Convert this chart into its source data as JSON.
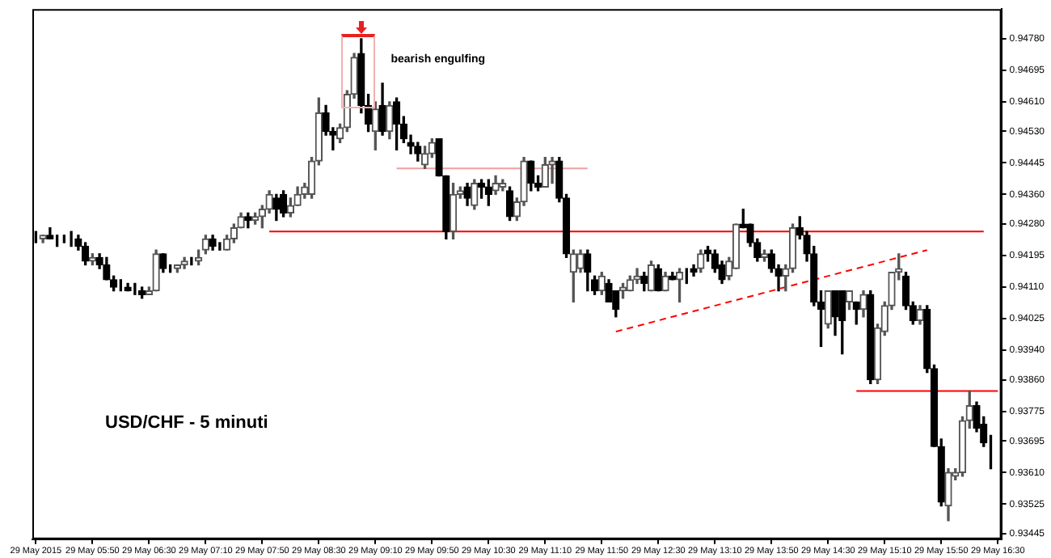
{
  "chart_data": {
    "type": "candlestick",
    "title": "USD/CHF - 5 minuti",
    "annotations": [
      "bearish engulfing"
    ],
    "categories": [
      "29 May 2015",
      null,
      null,
      null,
      null,
      null,
      null,
      null,
      "29 May 05:50",
      null,
      null,
      null,
      null,
      null,
      null,
      null,
      "29 May 06:30",
      null,
      null,
      null,
      null,
      null,
      null,
      null,
      "29 May 07:10",
      null,
      null,
      null,
      null,
      null,
      null,
      null,
      "29 May 07:50",
      null,
      null,
      null,
      null,
      null,
      null,
      null,
      "29 May 08:30",
      null,
      null,
      null,
      null,
      null,
      null,
      null,
      "29 May 09:10",
      null,
      null,
      null,
      null,
      null,
      null,
      null,
      "29 May 09:50",
      null,
      null,
      null,
      null,
      null,
      null,
      null,
      "29 May 10:30",
      null,
      null,
      null,
      null,
      null,
      null,
      null,
      "29 May 11:10",
      null,
      null,
      null,
      null,
      null,
      null,
      null,
      "29 May 11:50",
      null,
      null,
      null,
      null,
      null,
      null,
      null,
      "29 May 12:30",
      null,
      null,
      null,
      null,
      null,
      null,
      null,
      "29 May 13:10",
      null,
      null,
      null,
      null,
      null,
      null,
      null,
      "29 May 13:50",
      null,
      null,
      null,
      null,
      null,
      null,
      null,
      "29 May 14:30",
      null,
      null,
      null,
      null,
      null,
      null,
      null,
      "29 May 15:10",
      null,
      null,
      null,
      null,
      null,
      null,
      null,
      "29 May 15:50",
      null,
      null,
      null,
      null,
      null,
      null,
      null,
      "29 May 16:30"
    ],
    "ohlc": [
      [
        0.9424,
        0.9426,
        0.9423,
        0.9424
      ],
      [
        0.9424,
        0.9425,
        0.9423,
        0.9425
      ],
      [
        0.9425,
        0.9427,
        0.9424,
        0.9424
      ],
      [
        0.9424,
        0.9425,
        0.9422,
        0.9424
      ],
      [
        0.9424,
        0.9425,
        0.9423,
        0.9424
      ],
      [
        0.9424,
        0.9426,
        0.9422,
        0.9424
      ],
      [
        0.9424,
        0.9425,
        0.9421,
        0.9422
      ],
      [
        0.9422,
        0.9423,
        0.9417,
        0.9418
      ],
      [
        0.9418,
        0.942,
        0.9417,
        0.9419
      ],
      [
        0.9419,
        0.942,
        0.9416,
        0.9417
      ],
      [
        0.9417,
        0.9419,
        0.9413,
        0.9413
      ],
      [
        0.9413,
        0.9414,
        0.941,
        0.9411
      ],
      [
        0.9411,
        0.9413,
        0.941,
        0.9411
      ],
      [
        0.9411,
        0.9412,
        0.941,
        0.941
      ],
      [
        0.941,
        0.9412,
        0.9409,
        0.941
      ],
      [
        0.941,
        0.9411,
        0.9408,
        0.9409
      ],
      [
        0.9409,
        0.9411,
        0.9409,
        0.941
      ],
      [
        0.941,
        0.9421,
        0.941,
        0.942
      ],
      [
        0.942,
        0.942,
        0.9415,
        0.9416
      ],
      [
        0.9416,
        0.9417,
        0.9415,
        0.9416
      ],
      [
        0.9416,
        0.9417,
        0.9415,
        0.9417
      ],
      [
        0.9417,
        0.9419,
        0.9416,
        0.9418
      ],
      [
        0.9418,
        0.9419,
        0.9417,
        0.9418
      ],
      [
        0.9418,
        0.9421,
        0.9417,
        0.9419
      ],
      [
        0.9421,
        0.9425,
        0.942,
        0.9424
      ],
      [
        0.9424,
        0.9425,
        0.9421,
        0.9422
      ],
      [
        0.9422,
        0.9423,
        0.9421,
        0.9422
      ],
      [
        0.9421,
        0.9425,
        0.9421,
        0.9424
      ],
      [
        0.9424,
        0.9428,
        0.9423,
        0.9427
      ],
      [
        0.9427,
        0.9431,
        0.9427,
        0.943
      ],
      [
        0.943,
        0.9431,
        0.9427,
        0.9429
      ],
      [
        0.9429,
        0.9431,
        0.9428,
        0.943
      ],
      [
        0.943,
        0.9433,
        0.9427,
        0.9432
      ],
      [
        0.9432,
        0.9437,
        0.9431,
        0.9436
      ],
      [
        0.9435,
        0.9436,
        0.9429,
        0.9432
      ],
      [
        0.9436,
        0.9437,
        0.943,
        0.9431
      ],
      [
        0.9431,
        0.9435,
        0.943,
        0.9433
      ],
      [
        0.9433,
        0.9438,
        0.9433,
        0.9436
      ],
      [
        0.9436,
        0.9439,
        0.9435,
        0.9438
      ],
      [
        0.9436,
        0.9446,
        0.9435,
        0.9445
      ],
      [
        0.9445,
        0.9462,
        0.9444,
        0.9458
      ],
      [
        0.9458,
        0.946,
        0.9452,
        0.9453
      ],
      [
        0.9453,
        0.9454,
        0.9448,
        0.9452
      ],
      [
        0.9451,
        0.9455,
        0.945,
        0.9454
      ],
      [
        0.9454,
        0.9464,
        0.9453,
        0.9463
      ],
      [
        0.9463,
        0.9474,
        0.9462,
        0.9473
      ],
      [
        0.9474,
        0.9478,
        0.9458,
        0.946
      ],
      [
        0.946,
        0.9463,
        0.9453,
        0.9455
      ],
      [
        0.9453,
        0.9461,
        0.9448,
        0.9459
      ],
      [
        0.946,
        0.9466,
        0.9452,
        0.9453
      ],
      [
        0.9453,
        0.9461,
        0.9451,
        0.946
      ],
      [
        0.9461,
        0.9462,
        0.9448,
        0.9455
      ],
      [
        0.9455,
        0.9457,
        0.945,
        0.9451
      ],
      [
        0.945,
        0.9452,
        0.9447,
        0.9449
      ],
      [
        0.9449,
        0.945,
        0.9445,
        0.9447
      ],
      [
        0.9444,
        0.9449,
        0.9443,
        0.9447
      ],
      [
        0.9447,
        0.9451,
        0.9446,
        0.945
      ],
      [
        0.9451,
        0.9451,
        0.9441,
        0.9441
      ],
      [
        0.9441,
        0.9441,
        0.9424,
        0.9426
      ],
      [
        0.9426,
        0.9439,
        0.9424,
        0.9436
      ],
      [
        0.9436,
        0.9438,
        0.9435,
        0.9437
      ],
      [
        0.9438,
        0.9439,
        0.9433,
        0.9435
      ],
      [
        0.9433,
        0.944,
        0.9432,
        0.9439
      ],
      [
        0.9439,
        0.944,
        0.9435,
        0.9438
      ],
      [
        0.9438,
        0.944,
        0.9433,
        0.9436
      ],
      [
        0.9437,
        0.9441,
        0.9436,
        0.9439
      ],
      [
        0.9438,
        0.944,
        0.9437,
        0.9439
      ],
      [
        0.9437,
        0.9438,
        0.9429,
        0.943
      ],
      [
        0.943,
        0.9435,
        0.9429,
        0.9434
      ],
      [
        0.9434,
        0.9446,
        0.9433,
        0.9445
      ],
      [
        0.9445,
        0.9445,
        0.9437,
        0.9439
      ],
      [
        0.9439,
        0.9441,
        0.9437,
        0.9438
      ],
      [
        0.9438,
        0.9446,
        0.9438,
        0.9444
      ],
      [
        0.9444,
        0.9446,
        0.9439,
        0.9445
      ],
      [
        0.9445,
        0.9446,
        0.9434,
        0.9435
      ],
      [
        0.9435,
        0.9436,
        0.9419,
        0.942
      ],
      [
        0.9415,
        0.9421,
        0.9407,
        0.942
      ],
      [
        0.9416,
        0.9421,
        0.9415,
        0.942
      ],
      [
        0.942,
        0.9421,
        0.941,
        0.9415
      ],
      [
        0.9413,
        0.9414,
        0.9409,
        0.941
      ],
      [
        0.941,
        0.9415,
        0.9409,
        0.9414
      ],
      [
        0.9412,
        0.9413,
        0.9407,
        0.9407
      ],
      [
        0.941,
        0.941,
        0.9403,
        0.9405
      ],
      [
        0.941,
        0.9412,
        0.9408,
        0.9411
      ],
      [
        0.941,
        0.9414,
        0.941,
        0.9413
      ],
      [
        0.9413,
        0.9416,
        0.9412,
        0.9414
      ],
      [
        0.9414,
        0.9415,
        0.941,
        0.9412
      ],
      [
        0.941,
        0.9418,
        0.941,
        0.9417
      ],
      [
        0.9416,
        0.9417,
        0.941,
        0.941
      ],
      [
        0.941,
        0.9415,
        0.941,
        0.9414
      ],
      [
        0.9414,
        0.9415,
        0.9413,
        0.9413
      ],
      [
        0.9413,
        0.9416,
        0.9407,
        0.9415
      ],
      [
        0.9414,
        0.9416,
        0.9412,
        0.9414
      ],
      [
        0.9416,
        0.9417,
        0.9414,
        0.9415
      ],
      [
        0.9416,
        0.9421,
        0.9415,
        0.942
      ],
      [
        0.9421,
        0.9422,
        0.9418,
        0.942
      ],
      [
        0.942,
        0.9421,
        0.9415,
        0.9416
      ],
      [
        0.9417,
        0.9418,
        0.9412,
        0.9413
      ],
      [
        0.9414,
        0.9419,
        0.9413,
        0.9418
      ],
      [
        0.9416,
        0.9428,
        0.9416,
        0.9428
      ],
      [
        0.9428,
        0.9432,
        0.9427,
        0.9427
      ],
      [
        0.9428,
        0.9428,
        0.9422,
        0.9423
      ],
      [
        0.9423,
        0.9424,
        0.9418,
        0.9419
      ],
      [
        0.9419,
        0.9421,
        0.9418,
        0.942
      ],
      [
        0.942,
        0.9421,
        0.9415,
        0.9416
      ],
      [
        0.9416,
        0.9417,
        0.941,
        0.9414
      ],
      [
        0.9414,
        0.9417,
        0.941,
        0.9416
      ],
      [
        0.9416,
        0.9428,
        0.9415,
        0.9427
      ],
      [
        0.9427,
        0.943,
        0.9424,
        0.9425
      ],
      [
        0.9425,
        0.9426,
        0.9418,
        0.942
      ],
      [
        0.942,
        0.9422,
        0.9406,
        0.9407
      ],
      [
        0.9407,
        0.941,
        0.9395,
        0.9405
      ],
      [
        0.9401,
        0.941,
        0.94,
        0.941
      ],
      [
        0.941,
        0.941,
        0.9398,
        0.9403
      ],
      [
        0.941,
        0.941,
        0.9393,
        0.9402
      ],
      [
        0.9407,
        0.941,
        0.9405,
        0.941
      ],
      [
        0.9407,
        0.9407,
        0.9401,
        0.9405
      ],
      [
        0.9405,
        0.941,
        0.9403,
        0.9409
      ],
      [
        0.9409,
        0.941,
        0.9385,
        0.9386
      ],
      [
        0.9386,
        0.9401,
        0.9385,
        0.94
      ],
      [
        0.9399,
        0.9407,
        0.9398,
        0.9406
      ],
      [
        0.9406,
        0.9415,
        0.9405,
        0.9415
      ],
      [
        0.9415,
        0.942,
        0.9413,
        0.9416
      ],
      [
        0.9414,
        0.9415,
        0.9405,
        0.9406
      ],
      [
        0.9406,
        0.9407,
        0.9401,
        0.9402
      ],
      [
        0.9402,
        0.9406,
        0.9401,
        0.9405
      ],
      [
        0.9405,
        0.9406,
        0.9388,
        0.9389
      ],
      [
        0.9389,
        0.939,
        0.9368,
        0.9368
      ],
      [
        0.9368,
        0.937,
        0.9352,
        0.9353
      ],
      [
        0.9352,
        0.9362,
        0.9348,
        0.9361
      ],
      [
        0.936,
        0.9362,
        0.9359,
        0.9361
      ],
      [
        0.9361,
        0.9376,
        0.936,
        0.9375
      ],
      [
        0.9375,
        0.9383,
        0.9373,
        0.9379
      ],
      [
        0.9379,
        0.938,
        0.9372,
        0.9373
      ],
      [
        0.9374,
        0.9376,
        0.9368,
        0.9369
      ],
      [
        0.9369,
        0.9371,
        0.9362,
        0.9369
      ],
      null
    ],
    "series": [
      {
        "type": "line",
        "color": "#ff0000",
        "values": [
          null,
          null,
          null,
          null,
          null,
          null,
          null,
          null,
          null,
          null,
          null,
          null,
          null,
          null,
          null,
          null,
          null,
          null,
          null,
          null,
          null,
          null,
          null,
          null,
          null,
          null,
          null,
          null,
          null,
          null,
          null,
          null,
          null,
          0.9426,
          null,
          null,
          null,
          null,
          null,
          null,
          null,
          null,
          null,
          null,
          null,
          null,
          null,
          null,
          null,
          null,
          null,
          null,
          null,
          null,
          null,
          null,
          null,
          null,
          null,
          null,
          null,
          null,
          null,
          null,
          null,
          null,
          null,
          null,
          null,
          null,
          null,
          null,
          null,
          null,
          null,
          null,
          null,
          null,
          null,
          null,
          null,
          null,
          null,
          null,
          null,
          null,
          null,
          null,
          null,
          null,
          null,
          null,
          null,
          null,
          null,
          null,
          null,
          null,
          null,
          null,
          null,
          null,
          null,
          null,
          null,
          null,
          null,
          null,
          null,
          null,
          null,
          null,
          null,
          null,
          null,
          null,
          null,
          null,
          null,
          null,
          null,
          null,
          null,
          null,
          null,
          null,
          null,
          null,
          null,
          null,
          null,
          null,
          null,
          null,
          0.9426,
          null,
          null
        ]
      },
      {
        "type": "line",
        "color": "#f0a0a0",
        "values": [
          null,
          null,
          null,
          null,
          null,
          null,
          null,
          null,
          null,
          null,
          null,
          null,
          null,
          null,
          null,
          null,
          null,
          null,
          null,
          null,
          null,
          null,
          null,
          null,
          null,
          null,
          null,
          null,
          null,
          null,
          null,
          null,
          null,
          null,
          null,
          null,
          null,
          null,
          null,
          null,
          null,
          null,
          null,
          null,
          null,
          null,
          null,
          null,
          null,
          null,
          null,
          0.9443,
          null,
          null,
          null,
          null,
          null,
          null,
          null,
          null,
          null,
          null,
          null,
          null,
          null,
          null,
          null,
          null,
          null,
          null,
          null,
          null,
          null,
          null,
          null,
          null,
          null,
          null,
          0.9443,
          null,
          null,
          null,
          null,
          null,
          null,
          null,
          null,
          null,
          null,
          null,
          null,
          null,
          null,
          null,
          null,
          null,
          null,
          null,
          null,
          null,
          null,
          null,
          null,
          null,
          null,
          null,
          null,
          null,
          null,
          null,
          null,
          null,
          null,
          null,
          null,
          null,
          null,
          null,
          null,
          null,
          null,
          null,
          null,
          null,
          null,
          null,
          null,
          null,
          null,
          null,
          null,
          null,
          null,
          null,
          null,
          null,
          null
        ]
      },
      {
        "type": "line",
        "color": "#ff0000",
        "values": [
          null,
          null,
          null,
          null,
          null,
          null,
          null,
          null,
          null,
          null,
          null,
          null,
          null,
          null,
          null,
          null,
          null,
          null,
          null,
          null,
          null,
          null,
          null,
          null,
          null,
          null,
          null,
          null,
          null,
          null,
          null,
          null,
          null,
          null,
          null,
          null,
          null,
          null,
          null,
          null,
          null,
          null,
          null,
          null,
          null,
          null,
          null,
          null,
          null,
          null,
          null,
          null,
          null,
          null,
          null,
          null,
          null,
          null,
          null,
          null,
          null,
          null,
          null,
          null,
          null,
          null,
          null,
          null,
          null,
          null,
          null,
          null,
          null,
          null,
          null,
          null,
          null,
          null,
          null,
          null,
          null,
          null,
          null,
          null,
          null,
          null,
          null,
          null,
          null,
          null,
          null,
          null,
          null,
          null,
          null,
          null,
          null,
          null,
          null,
          null,
          null,
          null,
          null,
          null,
          null,
          null,
          null,
          null,
          null,
          null,
          null,
          null,
          null,
          null,
          null,
          null,
          0.9383,
          null,
          null,
          null,
          null,
          null,
          null,
          null,
          null,
          null,
          null,
          null,
          null,
          null,
          null,
          null,
          null,
          null,
          null,
          null,
          0.9383
        ]
      },
      {
        "type": "line",
        "color": "#ff0000",
        "line_style": "dashed",
        "values": [
          null,
          null,
          null,
          null,
          null,
          null,
          null,
          null,
          null,
          null,
          null,
          null,
          null,
          null,
          null,
          null,
          null,
          null,
          null,
          null,
          null,
          null,
          null,
          null,
          null,
          null,
          null,
          null,
          null,
          null,
          null,
          null,
          null,
          null,
          null,
          null,
          null,
          null,
          null,
          null,
          null,
          null,
          null,
          null,
          null,
          null,
          null,
          null,
          null,
          null,
          null,
          null,
          null,
          null,
          null,
          null,
          null,
          null,
          null,
          null,
          null,
          null,
          null,
          null,
          null,
          null,
          null,
          null,
          null,
          null,
          null,
          null,
          null,
          null,
          null,
          null,
          null,
          null,
          null,
          null,
          null,
          null,
          0.9399,
          null,
          null,
          null,
          null,
          null,
          null,
          null,
          null,
          null,
          null,
          null,
          null,
          null,
          null,
          null,
          null,
          null,
          null,
          null,
          null,
          null,
          null,
          null,
          null,
          null,
          null,
          null,
          null,
          null,
          null,
          null,
          null,
          null,
          null,
          null,
          null,
          null,
          null,
          null,
          null,
          null,
          null,
          null,
          0.9421,
          null,
          null,
          null,
          null,
          null,
          null,
          null,
          null,
          null,
          null
        ]
      }
    ],
    "ylim": [
      0.9343,
      0.9486
    ],
    "yticks": [
      {
        "value": 0.9478,
        "label": "0.94780"
      },
      0.94695,
      {
        "value": 0.9461,
        "label": "0.94610"
      },
      {
        "value": 0.9453,
        "label": "0.94530"
      },
      0.94445,
      {
        "value": 0.9436,
        "label": "0.94360"
      },
      {
        "value": 0.9428,
        "label": "0.94280"
      },
      0.94195,
      {
        "value": 0.9411,
        "label": "0.94110"
      },
      0.94025,
      {
        "value": 0.9394,
        "label": "0.93940"
      },
      {
        "value": 0.9386,
        "label": "0.93860"
      },
      0.93775,
      0.93695,
      {
        "value": 0.9361,
        "label": "0.93610"
      },
      0.93525,
      0.93445
    ],
    "legend": false
  }
}
